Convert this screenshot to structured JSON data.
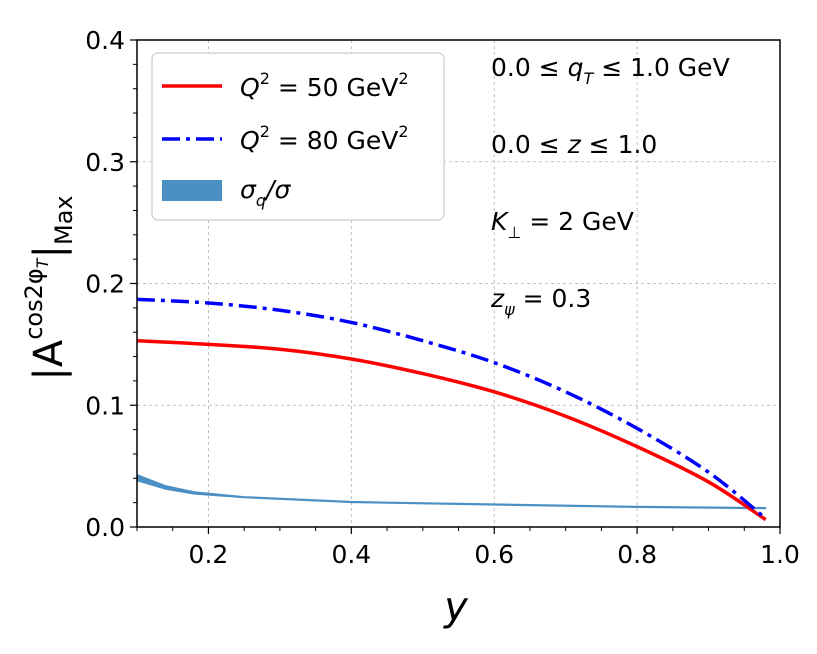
{
  "chart_data": {
    "type": "line",
    "xlabel": "y",
    "ylabel": {
      "base": "|A",
      "sup": "cos2φ",
      "sup_sub": "T",
      "close": "|",
      "sub": "Max"
    },
    "xlim": [
      0.1,
      1.0
    ],
    "ylim": [
      0.0,
      0.4
    ],
    "xticks": [
      0.2,
      0.4,
      0.6,
      0.8,
      1.0
    ],
    "xtick_labels": [
      "0.2",
      "0.4",
      "0.6",
      "0.8",
      "1.0"
    ],
    "yticks": [
      0.0,
      0.1,
      0.2,
      0.3,
      0.4
    ],
    "ytick_labels": [
      "0.0",
      "0.1",
      "0.2",
      "0.3",
      "0.4"
    ],
    "grid": true,
    "legend_position": "top-left",
    "series": [
      {
        "name": "Q^2 = 50 GeV^2",
        "legend": {
          "var": "Q",
          "sup": "2",
          "eq": " = 50 GeV",
          "sup2": "2"
        },
        "color": "#ff0000",
        "style": "solid",
        "x": [
          0.1,
          0.2,
          0.3,
          0.4,
          0.5,
          0.6,
          0.7,
          0.8,
          0.9,
          0.98
        ],
        "values": [
          0.153,
          0.15,
          0.146,
          0.138,
          0.126,
          0.111,
          0.091,
          0.066,
          0.037,
          0.006
        ]
      },
      {
        "name": "Q^2 = 80 GeV^2",
        "legend": {
          "var": "Q",
          "sup": "2",
          "eq": " = 80 GeV",
          "sup2": "2"
        },
        "color": "#0000ff",
        "style": "dashdot",
        "x": [
          0.1,
          0.2,
          0.3,
          0.4,
          0.5,
          0.6,
          0.7,
          0.8,
          0.9,
          0.98
        ],
        "values": [
          0.187,
          0.184,
          0.178,
          0.168,
          0.153,
          0.135,
          0.111,
          0.081,
          0.045,
          0.007
        ]
      },
      {
        "name": "σq/σ",
        "legend": {
          "var": "σ",
          "sub": "q",
          "rest": "/σ"
        },
        "color": "#4a90c4",
        "style": "band",
        "x": [
          0.1,
          0.14,
          0.18,
          0.25,
          0.4,
          0.6,
          0.8,
          0.98
        ],
        "lower": [
          0.038,
          0.031,
          0.027,
          0.024,
          0.02,
          0.018,
          0.016,
          0.015
        ],
        "upper": [
          0.043,
          0.034,
          0.029,
          0.025,
          0.021,
          0.019,
          0.017,
          0.016
        ]
      }
    ],
    "annotations": [
      {
        "id": "qt",
        "text": "0.0 ≤ q_T ≤ 1.0 GeV",
        "parts": {
          "pre": "0.0 ≤ ",
          "var": "q",
          "sub": "T",
          "post": " ≤ 1.0 GeV"
        }
      },
      {
        "id": "z",
        "text": "0.0 ≤ z ≤ 1.0",
        "parts": {
          "pre": "0.0 ≤ ",
          "var": "z",
          "post": " ≤ 1.0"
        }
      },
      {
        "id": "kperp",
        "text": "K_⊥ = 2 GeV",
        "parts": {
          "var": "K",
          "sub": "⊥",
          "post": " = 2 GeV"
        }
      },
      {
        "id": "zpsi",
        "text": "z_ψ = 0.3",
        "parts": {
          "var": "z",
          "sub": "ψ",
          "post": " = 0.3"
        }
      }
    ]
  }
}
